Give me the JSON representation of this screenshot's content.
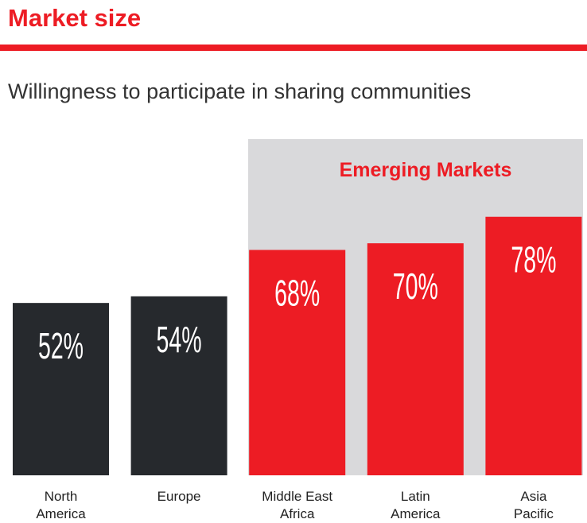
{
  "chart_data": {
    "type": "bar",
    "header": "Market size",
    "title": "Willingness to participate in sharing communities",
    "annotation": "Emerging Markets",
    "categories": [
      "North\nAmerica",
      "Europe",
      "Middle East\nAfrica",
      "Latin\nAmerica",
      "Asia\nPacific"
    ],
    "values": [
      52,
      54,
      68,
      70,
      78
    ],
    "value_labels": [
      "52%",
      "54%",
      "68%",
      "70%",
      "78%"
    ],
    "colors": [
      "#26292d",
      "#26292d",
      "#ed1c24",
      "#ed1c24",
      "#ed1c24"
    ]
  }
}
